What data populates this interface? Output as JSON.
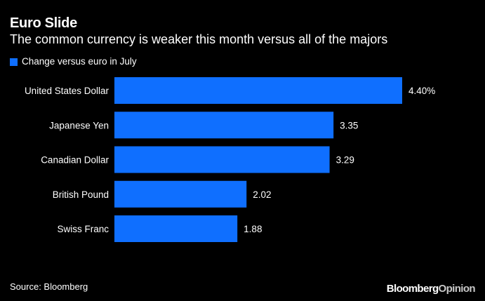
{
  "chart_data": {
    "type": "bar",
    "orientation": "horizontal",
    "title": "Euro Slide",
    "subtitle": "The common currency is weaker this month versus all of the majors",
    "categories": [
      "United States Dollar",
      "Japanese Yen",
      "Canadian Dollar",
      "British Pound",
      "Swiss Franc"
    ],
    "series": [
      {
        "name": "Change versus euro in July",
        "values": [
          4.4,
          3.35,
          3.29,
          2.02,
          1.88
        ],
        "value_labels": [
          "4.40%",
          "3.35",
          "3.29",
          "2.02",
          "1.88"
        ]
      }
    ],
    "xlim": [
      0,
      4.4
    ],
    "grid": false,
    "legend_position": "top-left",
    "colors": {
      "bar": "#0f6fff",
      "background": "#000000",
      "text": "#ffffff"
    }
  },
  "footer": {
    "source": "Source: Bloomberg",
    "brand_primary": "Bloomberg",
    "brand_secondary": "Opinion"
  }
}
